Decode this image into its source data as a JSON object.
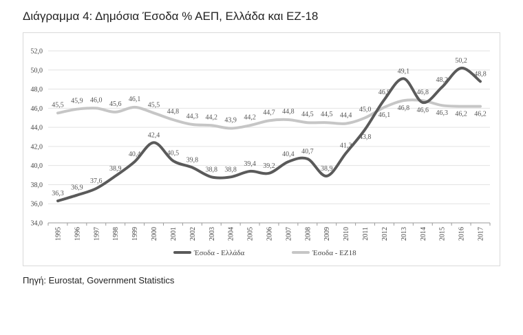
{
  "title": "Διάγραμμα 4: Δημόσια Έσοδα % ΑΕΠ, Ελλάδα και ΕΖ-18",
  "source": "Πηγή: Eurostat, Government Statistics",
  "chart_data": {
    "type": "line",
    "title": "Διάγραμμα 4: Δημόσια Έσοδα % ΑΕΠ, Ελλάδα και ΕΖ-18",
    "xlabel": "",
    "ylabel": "",
    "categories": [
      "1995",
      "1996",
      "1997",
      "1998",
      "1999",
      "2000",
      "2001",
      "2002",
      "2003",
      "2004",
      "2005",
      "2006",
      "2007",
      "2008",
      "2009",
      "2010",
      "2011",
      "2012",
      "2013",
      "2014",
      "2015",
      "2016",
      "2017"
    ],
    "ylim": [
      34,
      52
    ],
    "yticks": [
      "34,0",
      "36,0",
      "38,0",
      "40,0",
      "42,0",
      "44,0",
      "46,0",
      "48,0",
      "50,0",
      "52,0"
    ],
    "legend_position": "bottom",
    "grid": true,
    "series": [
      {
        "name": "Έσοδα - Ελλάδα",
        "color": "#5a5a5a",
        "values": [
          36.3,
          36.9,
          37.6,
          38.9,
          40.4,
          42.4,
          40.5,
          39.8,
          38.8,
          38.8,
          39.4,
          39.2,
          40.4,
          40.7,
          38.9,
          41.3,
          43.8,
          46.9,
          49.1,
          46.6,
          48.2,
          50.2,
          48.8
        ],
        "labels": [
          "36,3",
          "36,9",
          "37,6",
          "38,9",
          "40,4",
          "42,4",
          "40,5",
          "39,8",
          "38,8",
          "38,8",
          "39,4",
          "39,2",
          "40,4",
          "40,7",
          "38,9",
          "41,3",
          "43,8",
          "46,9",
          "49,1",
          "46,6",
          "48,2",
          "50,2",
          "48,8"
        ]
      },
      {
        "name": "Έσοδα - ΕΖ18",
        "color": "#c6c6c6",
        "values": [
          45.5,
          45.9,
          46.0,
          45.6,
          46.1,
          45.5,
          44.8,
          44.3,
          44.2,
          43.9,
          44.2,
          44.7,
          44.8,
          44.5,
          44.5,
          44.4,
          45.0,
          46.1,
          46.8,
          46.8,
          46.3,
          46.2,
          46.2
        ],
        "labels": [
          "45,5",
          "45,9",
          "46,0",
          "45,6",
          "46,1",
          "45,5",
          "44,8",
          "44,3",
          "44,2",
          "43,9",
          "44,2",
          "44,7",
          "44,8",
          "44,5",
          "44,5",
          "44,4",
          "45,0",
          "46,1",
          "46,8",
          "46,8",
          "46,3",
          "46,2",
          "46,2"
        ]
      }
    ]
  }
}
